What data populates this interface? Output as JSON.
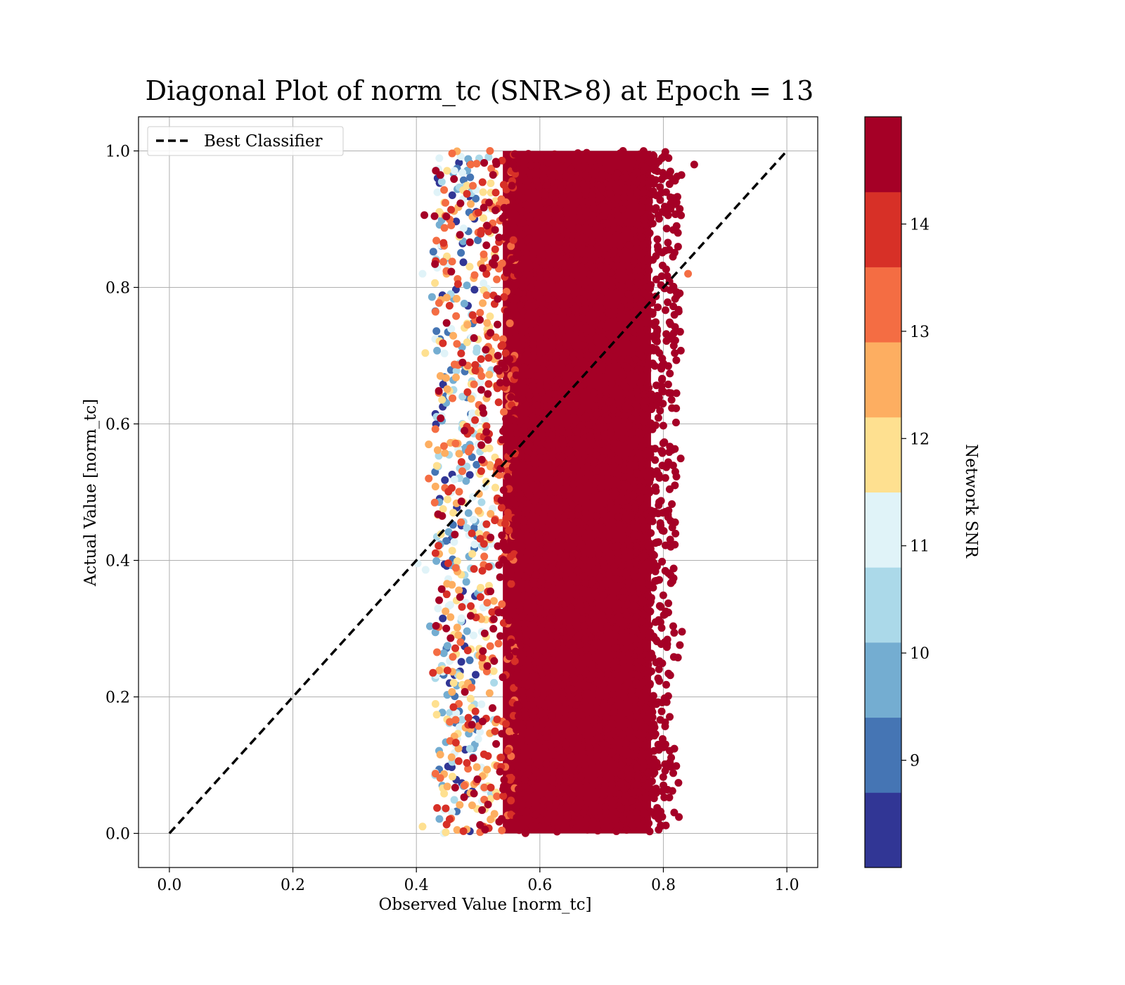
{
  "chart_data": {
    "type": "scatter",
    "title": "Diagonal Plot of norm_tc (SNR>8) at Epoch = 13",
    "xlabel": "Observed Value [norm_tc]",
    "ylabel": "Actual Value [norm_tc]",
    "xlim": [
      -0.05,
      1.05
    ],
    "ylim": [
      -0.05,
      1.05
    ],
    "xticks": [
      0.0,
      0.2,
      0.4,
      0.6,
      0.8,
      1.0
    ],
    "yticks": [
      0.0,
      0.2,
      0.4,
      0.6,
      0.8,
      1.0
    ],
    "xtick_labels": [
      "0.0",
      "0.2",
      "0.4",
      "0.6",
      "0.8",
      "1.0"
    ],
    "ytick_labels": [
      "0.0",
      "0.2",
      "0.4",
      "0.6",
      "0.8",
      "1.0"
    ],
    "grid": true,
    "legend": {
      "position": "top-left",
      "entries": [
        {
          "label": "Best Classifier",
          "style": "dashed",
          "color": "#000000"
        }
      ]
    },
    "reference_line": {
      "name": "Best Classifier",
      "x": [
        0.0,
        1.0
      ],
      "y": [
        0.0,
        1.0
      ]
    },
    "scatter_summary": {
      "x_range": [
        0.41,
        0.85
      ],
      "y_range": [
        0.0,
        1.0
      ],
      "dense_core_x": [
        0.53,
        0.79
      ],
      "low_snr_band_x": [
        0.43,
        0.53
      ]
    },
    "colorbar": {
      "label": "Network SNR",
      "ticks": [
        9,
        10,
        11,
        12,
        13,
        14
      ],
      "tick_labels": [
        "9",
        "10",
        "11",
        "12",
        "13",
        "14"
      ],
      "range": [
        8,
        15
      ],
      "levels": [
        {
          "min": 8.0,
          "max": 8.7,
          "color": "#313695"
        },
        {
          "min": 8.7,
          "max": 9.4,
          "color": "#4575b4"
        },
        {
          "min": 9.4,
          "max": 10.1,
          "color": "#74add1"
        },
        {
          "min": 10.1,
          "max": 10.8,
          "color": "#abd9e9"
        },
        {
          "min": 10.8,
          "max": 11.5,
          "color": "#e0f3f8"
        },
        {
          "min": 11.5,
          "max": 12.2,
          "color": "#fee090"
        },
        {
          "min": 12.2,
          "max": 12.9,
          "color": "#fdae61"
        },
        {
          "min": 12.9,
          "max": 13.6,
          "color": "#f46d43"
        },
        {
          "min": 13.6,
          "max": 14.3,
          "color": "#d73027"
        },
        {
          "min": 14.3,
          "max": 15.0,
          "color": "#a50026"
        }
      ]
    }
  }
}
